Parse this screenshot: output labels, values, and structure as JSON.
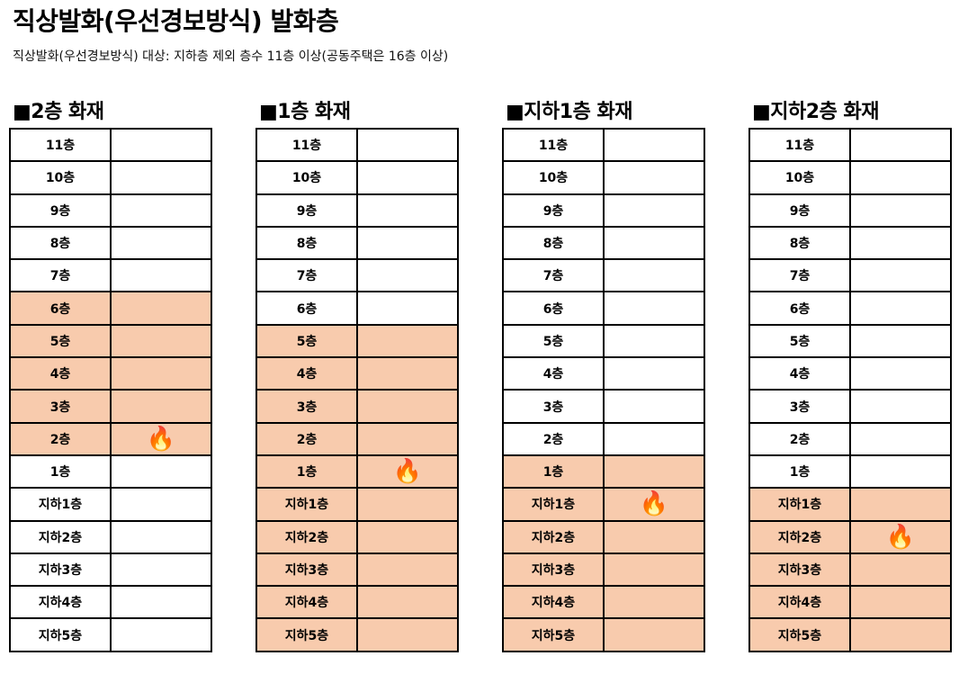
{
  "title": "직상발화(우선경보방식) 발화층",
  "subtitle": "직상발화(우선경보방식) 대상: 지하층 제외 층수 11층 이상(공동주택은 16층 이상)",
  "highlight_color": "#f8cbad",
  "fire_icon": "fire-icon",
  "fire_glyph": "🔥",
  "floors": [
    "11층",
    "10층",
    "9층",
    "8층",
    "7층",
    "6층",
    "5층",
    "4층",
    "3층",
    "2층",
    "1층",
    "지하1층",
    "지하2층",
    "지하3층",
    "지하4층",
    "지하5층"
  ],
  "panels": [
    {
      "title": "■2층 화재",
      "fire_floor": "2층",
      "highlighted": [
        "6층",
        "5층",
        "4층",
        "3층",
        "2층"
      ]
    },
    {
      "title": "■1층 화재",
      "fire_floor": "1층",
      "highlighted": [
        "5층",
        "4층",
        "3층",
        "2층",
        "1층",
        "지하1층",
        "지하2층",
        "지하3층",
        "지하4층",
        "지하5층"
      ]
    },
    {
      "title": "■지하1층 화재",
      "fire_floor": "지하1층",
      "highlighted": [
        "1층",
        "지하1층",
        "지하2층",
        "지하3층",
        "지하4층",
        "지하5층"
      ]
    },
    {
      "title": "■지하2층 화재",
      "fire_floor": "지하2층",
      "highlighted": [
        "지하1층",
        "지하2층",
        "지하3층",
        "지하4층",
        "지하5층"
      ]
    }
  ]
}
